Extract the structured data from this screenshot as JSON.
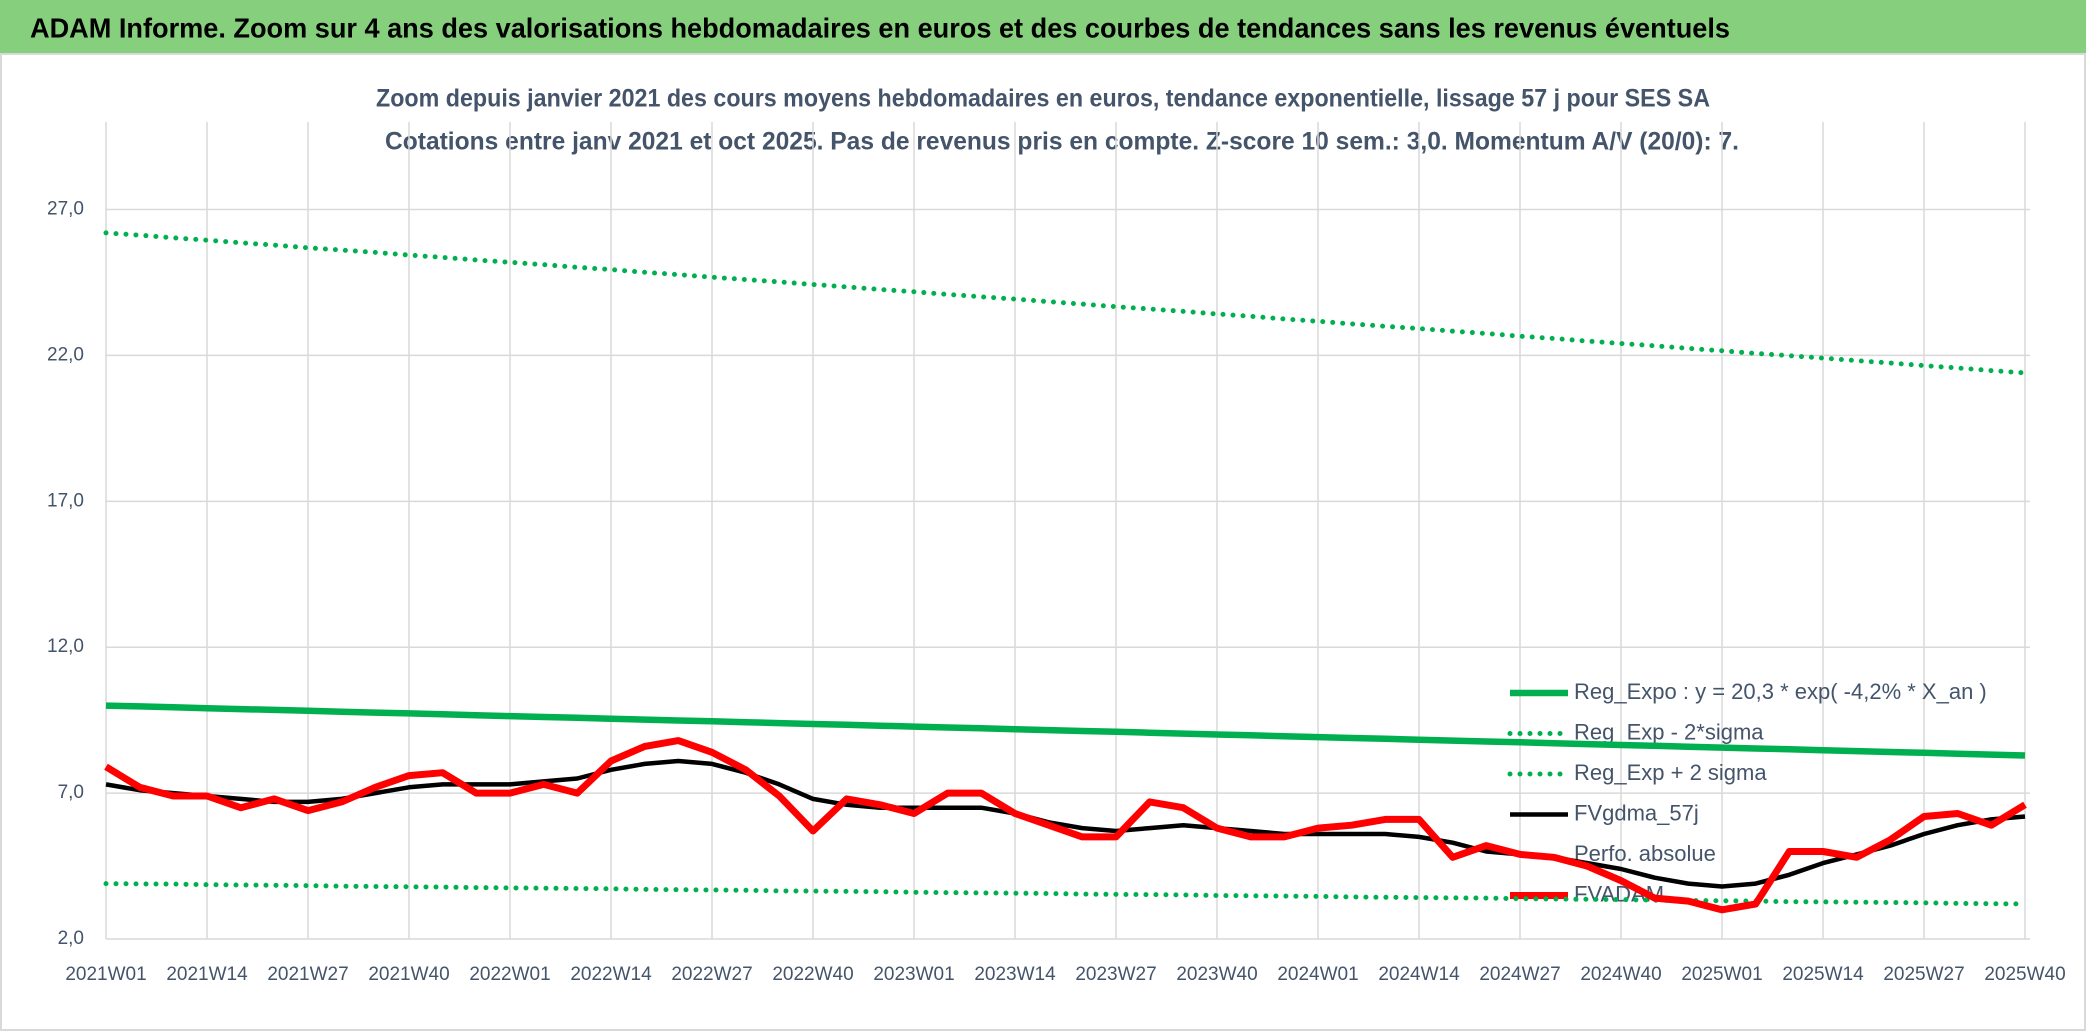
{
  "header": {
    "title": "ADAM Informe. Zoom sur 4 ans des valorisations hebdomadaires en euros et des courbes de tendances sans les revenus éventuels"
  },
  "chart_data": {
    "type": "line",
    "title": "Zoom depuis janvier 2021 des cours moyens hebdomadaires en euros, tendance exponentielle, lissage 57 j pour SES SA",
    "subtitle": "Cotations entre janv 2021 et oct 2025. Pas de revenus pris en compte. Z-score 10 sem.: 3,0. Momentum A/V (20/0): 7.",
    "categories": [
      "2021W01",
      null,
      null,
      "2021W14",
      null,
      null,
      "2021W27",
      null,
      null,
      "2021W40",
      null,
      null,
      "2022W01",
      null,
      null,
      "2022W14",
      null,
      null,
      "2022W27",
      null,
      null,
      "2022W40",
      null,
      null,
      "2023W01",
      null,
      null,
      "2023W14",
      null,
      null,
      "2023W27",
      null,
      null,
      "2023W40",
      null,
      null,
      "2024W01",
      null,
      null,
      "2024W14",
      null,
      null,
      "2024W27",
      null,
      null,
      "2024W40",
      null,
      null,
      "2025W01",
      null,
      null,
      "2025W14",
      null,
      null,
      "2025W27",
      null,
      null,
      "2025W40"
    ],
    "ylim": [
      2,
      30
    ],
    "yticks": [
      {
        "value": 2,
        "label": "2,0"
      },
      {
        "value": 7,
        "label": "7,0"
      },
      {
        "value": 12,
        "label": "12,0"
      },
      {
        "value": 17,
        "label": "17,0"
      },
      {
        "value": 22,
        "label": "22,0"
      },
      {
        "value": 27,
        "label": "27,0"
      }
    ],
    "grid": true,
    "series": [
      {
        "name": "Reg_Expo : y = 20,3 * exp( -4,2% *  X_an )",
        "color": "#00b050",
        "style": "solid",
        "values": [
          10.0,
          9.97,
          9.94,
          9.91,
          9.88,
          9.85,
          9.82,
          9.79,
          9.76,
          9.73,
          9.7,
          9.67,
          9.64,
          9.61,
          9.58,
          9.55,
          9.52,
          9.49,
          9.46,
          9.43,
          9.4,
          9.37,
          9.34,
          9.31,
          9.28,
          9.25,
          9.22,
          9.19,
          9.16,
          9.13,
          9.1,
          9.07,
          9.04,
          9.01,
          8.98,
          8.95,
          8.92,
          8.89,
          8.86,
          8.83,
          8.8,
          8.77,
          8.74,
          8.71,
          8.68,
          8.65,
          8.62,
          8.59,
          8.56,
          8.53,
          8.5,
          8.47,
          8.44,
          8.41,
          8.38,
          8.35,
          8.32,
          8.29
        ]
      },
      {
        "name": "Reg_Exp - 2*sigma",
        "color": "#00b050",
        "style": "dotted",
        "values": [
          3.9,
          3.89,
          3.88,
          3.86,
          3.85,
          3.84,
          3.83,
          3.81,
          3.8,
          3.79,
          3.78,
          3.76,
          3.75,
          3.74,
          3.73,
          3.72,
          3.7,
          3.69,
          3.68,
          3.67,
          3.65,
          3.64,
          3.63,
          3.62,
          3.6,
          3.59,
          3.58,
          3.57,
          3.56,
          3.54,
          3.53,
          3.52,
          3.51,
          3.49,
          3.48,
          3.47,
          3.46,
          3.44,
          3.43,
          3.42,
          3.41,
          3.4,
          3.38,
          3.37,
          3.36,
          3.35,
          3.33,
          3.32,
          3.31,
          3.3,
          3.28,
          3.27,
          3.26,
          3.25,
          3.24,
          3.22,
          3.21,
          3.2
        ]
      },
      {
        "name": "Reg_Exp + 2 sigma",
        "color": "#00b050",
        "style": "dotted",
        "values": [
          26.2,
          26.12,
          26.03,
          25.95,
          25.86,
          25.78,
          25.69,
          25.61,
          25.53,
          25.44,
          25.36,
          25.27,
          25.19,
          25.11,
          25.02,
          24.94,
          24.85,
          24.77,
          24.68,
          24.6,
          24.52,
          24.43,
          24.35,
          24.26,
          24.18,
          24.09,
          24.01,
          23.93,
          23.84,
          23.76,
          23.67,
          23.59,
          23.51,
          23.42,
          23.34,
          23.25,
          23.17,
          23.08,
          23.0,
          22.92,
          22.83,
          22.75,
          22.66,
          22.58,
          22.49,
          22.41,
          22.33,
          22.24,
          22.16,
          22.07,
          21.99,
          21.91,
          21.82,
          21.74,
          21.65,
          21.57,
          21.48,
          21.4
        ]
      },
      {
        "name": "FVgdma_57j",
        "color": "#000000",
        "style": "solid",
        "values": [
          7.3,
          7.1,
          7.0,
          6.9,
          6.8,
          6.7,
          6.7,
          6.8,
          7.0,
          7.2,
          7.3,
          7.3,
          7.3,
          7.4,
          7.5,
          7.8,
          8.0,
          8.1,
          8.0,
          7.7,
          7.3,
          6.8,
          6.6,
          6.5,
          6.5,
          6.5,
          6.5,
          6.3,
          6.0,
          5.8,
          5.7,
          5.8,
          5.9,
          5.8,
          5.7,
          5.6,
          5.6,
          5.6,
          5.6,
          5.5,
          5.3,
          5.0,
          4.9,
          4.8,
          4.6,
          4.4,
          4.1,
          3.9,
          3.8,
          3.9,
          4.2,
          4.6,
          4.9,
          5.2,
          5.6,
          5.9,
          6.1,
          6.2
        ]
      },
      {
        "name": "Perfo. absolue",
        "color": "#ffffff",
        "style": "solid",
        "values": [
          null,
          null,
          null,
          null,
          null,
          null,
          null,
          null,
          null,
          null,
          null,
          null,
          null,
          null,
          null,
          null,
          null,
          null,
          null,
          null,
          null,
          null,
          null,
          null,
          null,
          null,
          null,
          null,
          null,
          null,
          null,
          null,
          null,
          null,
          null,
          null,
          null,
          null,
          null,
          null,
          null,
          null,
          null,
          null,
          null,
          null,
          null,
          null,
          null,
          null,
          null,
          null,
          null,
          null,
          null,
          null,
          null,
          null
        ]
      },
      {
        "name": "FVADAM",
        "color": "#ff0000",
        "style": "thick",
        "values": [
          7.9,
          7.2,
          6.9,
          6.9,
          6.5,
          6.8,
          6.4,
          6.7,
          7.2,
          7.6,
          7.7,
          7.0,
          7.0,
          7.3,
          7.0,
          8.1,
          8.6,
          8.8,
          8.4,
          7.8,
          6.9,
          5.7,
          6.8,
          6.6,
          6.3,
          7.0,
          7.0,
          6.3,
          5.9,
          5.5,
          5.5,
          6.7,
          6.5,
          5.8,
          5.5,
          5.5,
          5.8,
          5.9,
          6.1,
          6.1,
          4.8,
          5.2,
          4.9,
          4.8,
          4.5,
          4.0,
          3.4,
          3.3,
          3.0,
          3.2,
          5.0,
          5.0,
          4.8,
          5.4,
          6.2,
          6.3,
          5.9,
          6.6
        ]
      }
    ]
  }
}
